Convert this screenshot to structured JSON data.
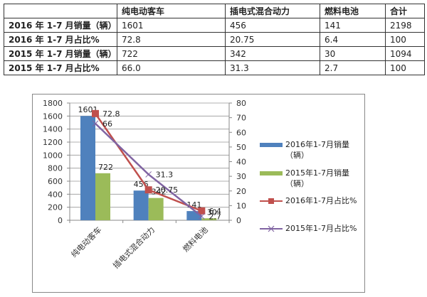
{
  "table": {
    "headers": [
      "",
      "纯电动客车",
      "插电式混合动力",
      "燃料电池",
      "合计"
    ],
    "rows": [
      [
        "2016 年 1-7 月销量（辆）",
        "1601",
        "456",
        "141",
        "2198"
      ],
      [
        "2016 年 1-7 月占比%",
        "72.8",
        "20.75",
        "6.4",
        "100"
      ],
      [
        "2015 年 1-7 月销量（辆）",
        "722",
        "342",
        "30",
        "1094"
      ],
      [
        "2015 年 1-7 月占比%",
        "66.0",
        "31.3",
        "2.7",
        "100"
      ]
    ]
  },
  "legend": {
    "items": [
      {
        "label": "2016年1-7月销量（辆）",
        "color": "#4F81BD",
        "kind": "bar"
      },
      {
        "label": "2015年1-7月销量（辆）",
        "color": "#9BBB59",
        "kind": "bar"
      },
      {
        "label": "2016年1-7月占比%",
        "color": "#C0504D",
        "kind": "line-square"
      },
      {
        "label": "2015年1-7月占比%",
        "color": "#8064A2",
        "kind": "line-x"
      }
    ]
  },
  "chart_data": {
    "type": "bar",
    "title": "",
    "categories": [
      "纯电动客车",
      "插电式混合动力",
      "燃料电池"
    ],
    "series": [
      {
        "name": "2016年1-7月销量（辆）",
        "type": "bar",
        "axis": "left",
        "color": "#4F81BD",
        "values": [
          1601,
          456,
          141
        ]
      },
      {
        "name": "2015年1-7月销量（辆）",
        "type": "bar",
        "axis": "left",
        "color": "#9BBB59",
        "values": [
          722,
          342,
          30
        ]
      },
      {
        "name": "2016年1-7月占比%",
        "type": "line",
        "axis": "right",
        "color": "#C0504D",
        "marker": "square",
        "values": [
          72.8,
          20.75,
          6.4
        ]
      },
      {
        "name": "2015年1-7月占比%",
        "type": "line",
        "axis": "right",
        "color": "#8064A2",
        "marker": "x",
        "values": [
          66,
          31.3,
          2.7
        ]
      }
    ],
    "y_left": {
      "min": 0,
      "max": 1800,
      "step": 200,
      "ticks": [
        "0",
        "200",
        "400",
        "600",
        "800",
        "1000",
        "1200",
        "1400",
        "1600",
        "1800"
      ]
    },
    "y_right": {
      "min": 0,
      "max": 80,
      "step": 10,
      "ticks": [
        "0",
        "10",
        "20",
        "30",
        "40",
        "50",
        "60",
        "70",
        "80"
      ]
    },
    "data_labels": {
      "bar_2016": [
        "1601",
        "456",
        "141"
      ],
      "bar_2015": [
        "722",
        "342",
        "30"
      ],
      "line_2016": [
        "72.8",
        "20.75",
        "6.4"
      ],
      "line_2015": [
        "66",
        "31.3",
        "2.7"
      ]
    },
    "grid": "horizontal",
    "legend_position": "right",
    "xlabel": "",
    "ylabel": ""
  }
}
